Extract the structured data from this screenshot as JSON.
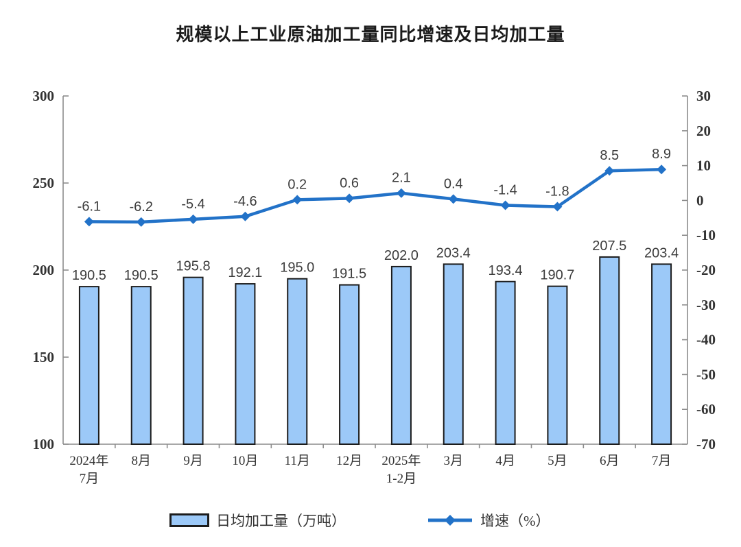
{
  "chart_data": {
    "type": "combo-bar-line",
    "title": "规模以上工业原油加工量同比增速及日均加工量",
    "categories": [
      "2024年\n7月",
      "8月",
      "9月",
      "10月",
      "11月",
      "12月",
      "2025年\n1-2月",
      "3月",
      "4月",
      "5月",
      "6月",
      "7月"
    ],
    "series": [
      {
        "name": "日均加工量（万吨）",
        "type": "bar",
        "axis": "left",
        "color": "#9CC9F8",
        "border_color": "#1c1c1c",
        "values": [
          190.5,
          190.5,
          195.8,
          192.1,
          195.0,
          191.5,
          202.0,
          203.4,
          193.4,
          190.7,
          207.5,
          203.4
        ]
      },
      {
        "name": "增速（%）",
        "type": "line",
        "axis": "right",
        "color": "#2272C8",
        "marker": "diamond",
        "values": [
          -6.1,
          -6.2,
          -5.4,
          -4.6,
          0.2,
          0.6,
          2.1,
          0.4,
          -1.4,
          -1.8,
          8.5,
          8.9
        ]
      }
    ],
    "left_axis": {
      "min": 100,
      "max": 300,
      "ticks": [
        300,
        250,
        200,
        150,
        100
      ]
    },
    "right_axis": {
      "min": -70,
      "max": 30,
      "ticks": [
        30,
        20,
        10,
        0,
        -10,
        -20,
        -30,
        -40,
        -50,
        -60,
        -70
      ]
    },
    "label_decimals": 1,
    "grid": false,
    "legend_position": "bottom",
    "colors": {
      "axis_line": "#8c8c8c",
      "tick_label": "#333333",
      "data_label": "#3c3c3c",
      "title": "#1b1b1b",
      "background": "#ffffff"
    }
  }
}
